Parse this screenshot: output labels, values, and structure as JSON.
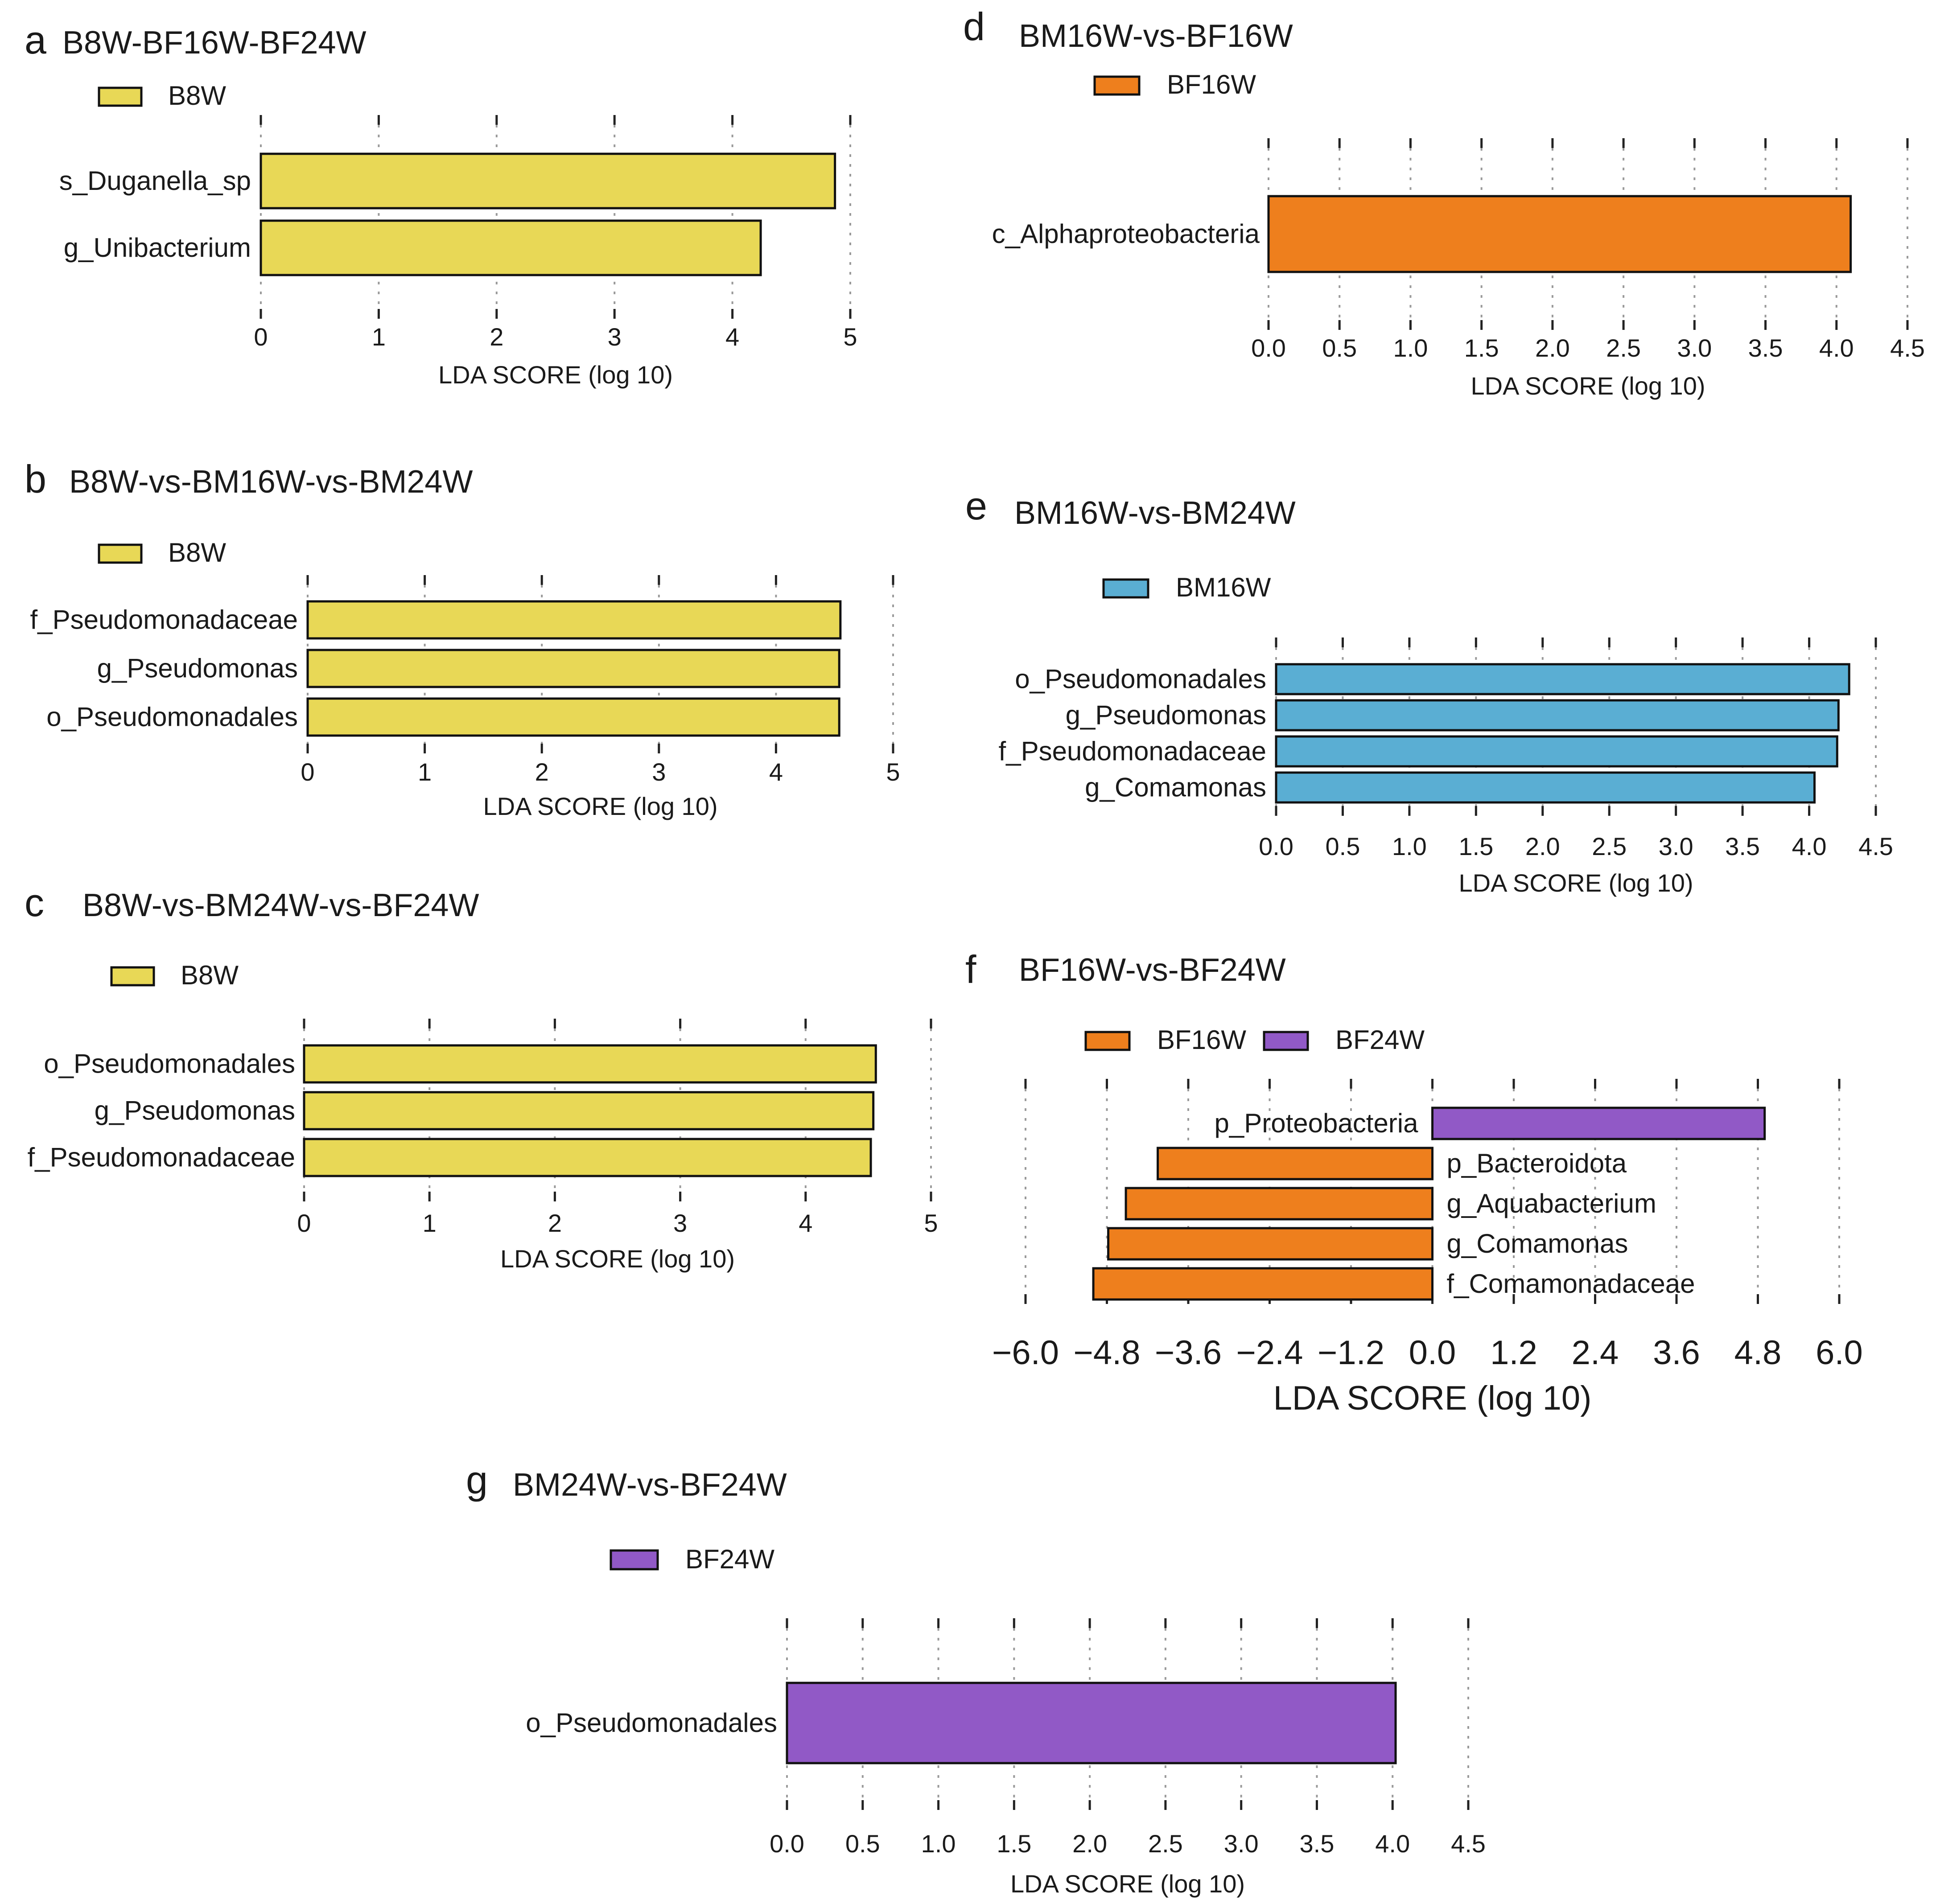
{
  "chart_data": [
    {
      "letter": "a",
      "title": "B8W-BF16W-BF24W",
      "type": "bar",
      "orientation": "horizontal",
      "legend": [
        {
          "label": "B8W",
          "color": "#e8d856"
        }
      ],
      "categories": [
        "s_Duganella_sp",
        "g_Unibacterium"
      ],
      "values": [
        4.87,
        4.24
      ],
      "colors": [
        "#e8d856",
        "#e8d856"
      ],
      "xlabel": "LDA SCORE (log 10)",
      "xlim": [
        0,
        5
      ],
      "ticks": [
        0,
        1,
        2,
        3,
        4,
        5
      ],
      "tick_labels": [
        "0",
        "1",
        "2",
        "3",
        "4",
        "5"
      ]
    },
    {
      "letter": "b",
      "title": "B8W-vs-BM16W-vs-BM24W",
      "type": "bar",
      "orientation": "horizontal",
      "legend": [
        {
          "label": "B8W",
          "color": "#e8d856"
        }
      ],
      "categories": [
        "f_Pseudomonadaceae",
        "g_Pseudomonas",
        "o_Pseudomonadales"
      ],
      "values": [
        4.55,
        4.54,
        4.54
      ],
      "colors": [
        "#e8d856",
        "#e8d856",
        "#e8d856"
      ],
      "xlabel": "LDA SCORE (log 10)",
      "xlim": [
        0,
        5
      ],
      "ticks": [
        0,
        1,
        2,
        3,
        4,
        5
      ],
      "tick_labels": [
        "0",
        "1",
        "2",
        "3",
        "4",
        "5"
      ]
    },
    {
      "letter": "c",
      "title": "B8W-vs-BM24W-vs-BF24W",
      "type": "bar",
      "orientation": "horizontal",
      "legend": [
        {
          "label": "B8W",
          "color": "#e8d856"
        }
      ],
      "categories": [
        "o_Pseudomonadales",
        "g_Pseudomonas",
        "f_Pseudomonadaceae"
      ],
      "values": [
        4.56,
        4.54,
        4.52
      ],
      "colors": [
        "#e8d856",
        "#e8d856",
        "#e8d856"
      ],
      "xlabel": "LDA SCORE (log 10)",
      "xlim": [
        0,
        5
      ],
      "ticks": [
        0,
        1,
        2,
        3,
        4,
        5
      ],
      "tick_labels": [
        "0",
        "1",
        "2",
        "3",
        "4",
        "5"
      ]
    },
    {
      "letter": "d",
      "title": "BM16W-vs-BF16W",
      "type": "bar",
      "orientation": "horizontal",
      "legend": [
        {
          "label": "BF16W",
          "color": "#ee7f1d"
        }
      ],
      "categories": [
        "c_Alphaproteobacteria"
      ],
      "values": [
        4.1
      ],
      "colors": [
        "#ee7f1d"
      ],
      "xlabel": "LDA SCORE (log 10)",
      "xlim": [
        0,
        4.5
      ],
      "ticks": [
        0,
        0.5,
        1,
        1.5,
        2,
        2.5,
        3,
        3.5,
        4,
        4.5
      ],
      "tick_labels": [
        "0.0",
        "0.5",
        "1.0",
        "1.5",
        "2.0",
        "2.5",
        "3.0",
        "3.5",
        "4.0",
        "4.5"
      ]
    },
    {
      "letter": "e",
      "title": "BM16W-vs-BM24W",
      "type": "bar",
      "orientation": "horizontal",
      "legend": [
        {
          "label": "BM16W",
          "color": "#5aaed3"
        }
      ],
      "categories": [
        "o_Pseudomonadales",
        "g_Pseudomonas",
        "f_Pseudomonadaceae",
        "g_Comamonas"
      ],
      "values": [
        4.3,
        4.22,
        4.21,
        4.04
      ],
      "colors": [
        "#5aaed3",
        "#5aaed3",
        "#5aaed3",
        "#5aaed3"
      ],
      "xlabel": "LDA SCORE (log 10)",
      "xlim": [
        0,
        4.5
      ],
      "ticks": [
        0,
        0.5,
        1,
        1.5,
        2,
        2.5,
        3,
        3.5,
        4,
        4.5
      ],
      "tick_labels": [
        "0.0",
        "0.5",
        "1.0",
        "1.5",
        "2.0",
        "2.5",
        "3.0",
        "3.5",
        "4.0",
        "4.5"
      ]
    },
    {
      "letter": "f",
      "title": "BF16W-vs-BF24W",
      "type": "bar",
      "orientation": "horizontal",
      "diverging": true,
      "legend": [
        {
          "label": "BF16W",
          "color": "#ee7f1d"
        },
        {
          "label": "BF24W",
          "color": "#9159c6"
        }
      ],
      "categories": [
        "p_Proteobacteria",
        "p_Bacteroidota",
        "g_Aquabacterium",
        "g_Comamonas",
        "f_Comamonadaceae"
      ],
      "values": [
        4.9,
        -4.05,
        -4.52,
        -4.78,
        -5.0
      ],
      "colors": [
        "#9159c6",
        "#ee7f1d",
        "#ee7f1d",
        "#ee7f1d",
        "#ee7f1d"
      ],
      "xlabel": "LDA SCORE (log 10)",
      "xlim": [
        -6,
        6
      ],
      "ticks": [
        -6,
        -4.8,
        -3.6,
        -2.4,
        -1.2,
        0,
        1.2,
        2.4,
        3.6,
        4.8,
        6
      ],
      "tick_labels": [
        "−6.0",
        "−4.8",
        "−3.6",
        "−2.4",
        "−1.2",
        "0.0",
        "1.2",
        "2.4",
        "3.6",
        "4.8",
        "6.0"
      ]
    },
    {
      "letter": "g",
      "title": "BM24W-vs-BF24W",
      "type": "bar",
      "orientation": "horizontal",
      "legend": [
        {
          "label": "BF24W",
          "color": "#9159c6"
        }
      ],
      "categories": [
        "o_Pseudomonadales"
      ],
      "values": [
        4.02
      ],
      "colors": [
        "#9159c6"
      ],
      "xlabel": "LDA SCORE (log 10)",
      "xlim": [
        0,
        4.5
      ],
      "ticks": [
        0,
        0.5,
        1,
        1.5,
        2,
        2.5,
        3,
        3.5,
        4,
        4.5
      ],
      "tick_labels": [
        "0.0",
        "0.5",
        "1.0",
        "1.5",
        "2.0",
        "2.5",
        "3.0",
        "3.5",
        "4.0",
        "4.5"
      ]
    }
  ]
}
